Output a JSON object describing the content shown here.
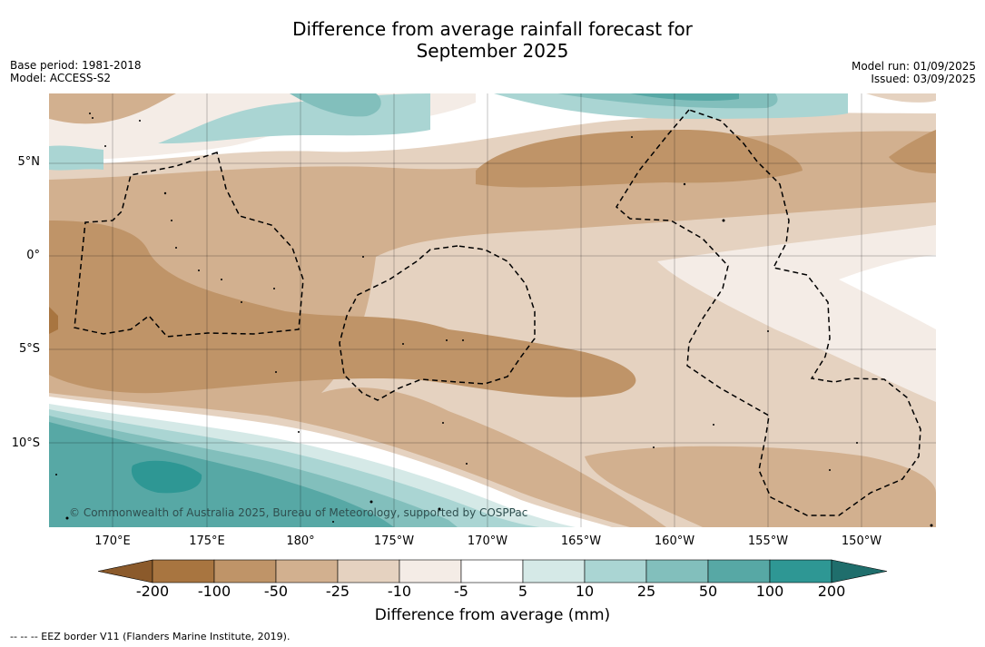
{
  "title_line1": "Difference from average rainfall forecast for",
  "title_line2": "September 2025",
  "base_period": "Base period: 1981-2018",
  "model": "Model: ACCESS-S2",
  "model_run": "Model run: 01/09/2025",
  "issued": "Issued: 03/09/2025",
  "credit": "© Commonwealth of Australia 2025, Bureau of Meteorology, supported by COSPPac",
  "lat_labels": [
    "5°N",
    "0°",
    "5°S",
    "10°S"
  ],
  "lon_labels": [
    "170°E",
    "175°E",
    "180°",
    "175°W",
    "170°W",
    "165°W",
    "160°W",
    "155°W",
    "150°W"
  ],
  "colorbar": {
    "ticks": [
      "-200",
      "-100",
      "-50",
      "-25",
      "-10",
      "-5",
      "5",
      "10",
      "25",
      "50",
      "100",
      "200"
    ],
    "colors": [
      "#8b5a2b",
      "#a87540",
      "#bf9468",
      "#d2b08f",
      "#e5d2c0",
      "#f4ece6",
      "#ffffff",
      "#d5e9e7",
      "#aad5d3",
      "#82bfbc",
      "#57a8a5",
      "#2e9794",
      "#1f6e6c"
    ],
    "label": "Difference from average (mm)"
  },
  "legend_eez": "--  --  -- EEZ border V11 (Flanders Marine Institute, 2019)."
}
